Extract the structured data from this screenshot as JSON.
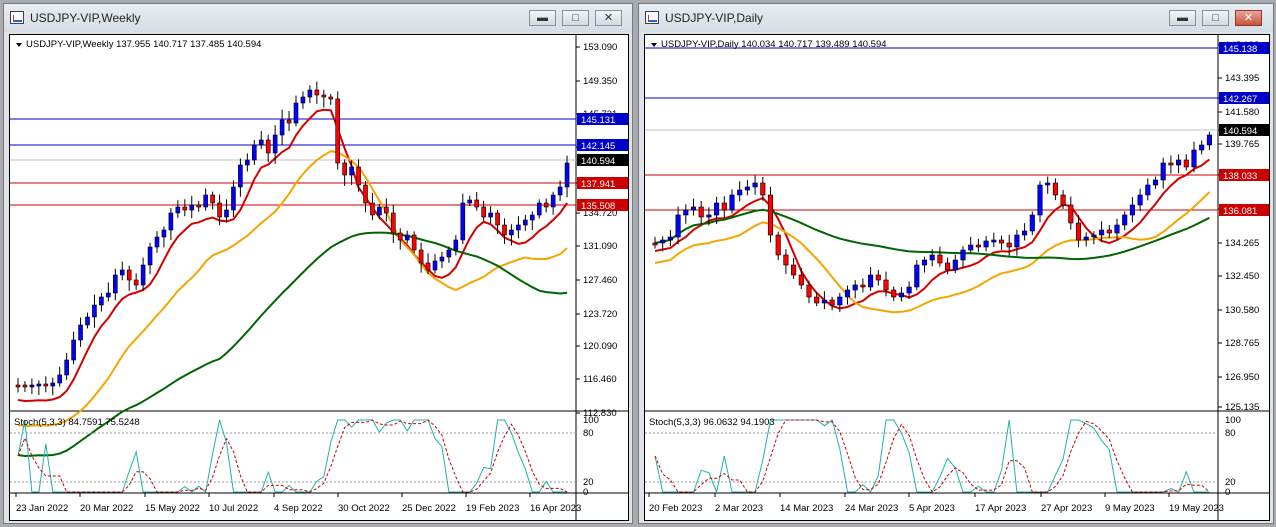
{
  "weekly": {
    "title": "USDJPY-VIP,Weekly",
    "info": "USDJPY-VIP,Weekly  137.955 140.717 137.485 140.594",
    "stoch_label": "Stoch(5,3,3) 84.7591 75.5248",
    "price_ticks": [
      "153.090",
      "149.350",
      "145.731",
      "142.145",
      "138.060",
      "134.720",
      "131.090",
      "127.460",
      "123.720",
      "120.090",
      "116.460",
      "112.830"
    ],
    "stoch_ticks": [
      "100",
      "80",
      "20",
      "0"
    ],
    "date_labels": [
      "23 Jan 2022",
      "20 Mar 2022",
      "15 May 2022",
      "10 Jul 2022",
      "4 Sep 2022",
      "30 Oct 2022",
      "25 Dec 2022",
      "19 Feb 2023",
      "16 Apr 2023"
    ],
    "levels": [
      {
        "text": "145.131",
        "bg": "#0000cc",
        "fg": "#ffffff"
      },
      {
        "text": "142.145",
        "bg": "#0000cc",
        "fg": "#ffffff"
      },
      {
        "text": "140.594",
        "bg": "#000000",
        "fg": "#ffffff"
      },
      {
        "text": "137.941",
        "bg": "#cc0000",
        "fg": "#ffffff"
      },
      {
        "text": "135.508",
        "bg": "#cc0000",
        "fg": "#ffffff"
      }
    ]
  },
  "daily": {
    "title": "USDJPY-VIP,Daily",
    "info": "USDJPY-VIP,Daily  140.034 140.717 139.489 140.594",
    "stoch_label": "Stoch(5,3,3) 96.0632 94.1903",
    "price_ticks": [
      "145.138",
      "143.395",
      "142.267",
      "141.580",
      "140.594",
      "139.765",
      "138.033",
      "136.081",
      "134.265",
      "132.450",
      "130.580",
      "128.765",
      "126.950",
      "125.135"
    ],
    "stoch_ticks": [
      "100",
      "80",
      "20",
      "0"
    ],
    "date_labels": [
      "20 Feb 2023",
      "2 Mar 2023",
      "14 Mar 2023",
      "24 Mar 2023",
      "5 Apr 2023",
      "17 Apr 2023",
      "27 Apr 2023",
      "9 May 2023",
      "19 May 2023"
    ],
    "levels": [
      {
        "text": "145.138",
        "bg": "#0000cc",
        "fg": "#ffffff"
      },
      {
        "text": "142.267",
        "bg": "#0000cc",
        "fg": "#ffffff"
      },
      {
        "text": "140.594",
        "bg": "#000000",
        "fg": "#ffffff"
      },
      {
        "text": "138.033",
        "bg": "#cc0000",
        "fg": "#ffffff"
      },
      {
        "text": "136.081",
        "bg": "#cc0000",
        "fg": "#ffffff"
      }
    ]
  },
  "window_buttons": {
    "minimize": "▬",
    "maximize": "□",
    "close": "✕"
  },
  "colors": {
    "bull": "#0000ff",
    "bear": "#ff0000",
    "ma_fast": "#d40000",
    "ma_mid": "#f5a500",
    "ma_slow": "#006400",
    "stoch_main": "#20b2aa",
    "stoch_signal": "#cc0000"
  }
}
